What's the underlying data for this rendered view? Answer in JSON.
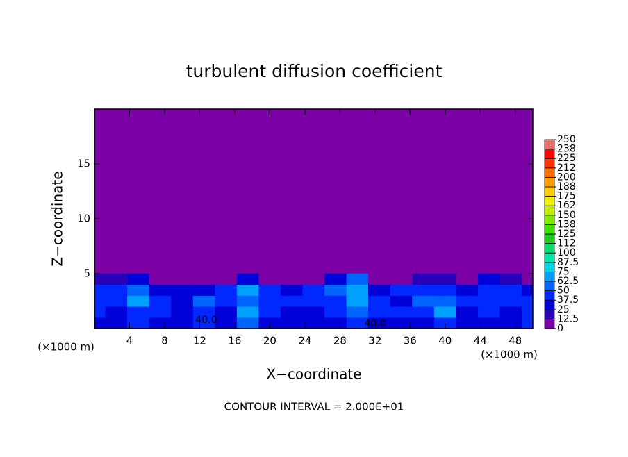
{
  "chart_data": {
    "type": "contour",
    "title": "turbulent diffusion coefficient",
    "x_label": "X−coordinate",
    "y_label": "Z−coordinate",
    "x_unit": "(×1000 m)",
    "footer": "CONTOUR INTERVAL = 2.000E+01",
    "xlim": [
      0,
      50
    ],
    "ylim": [
      0,
      20
    ],
    "xticks": [
      4,
      8,
      12,
      16,
      20,
      24,
      28,
      32,
      36,
      40,
      44,
      48
    ],
    "yticks": [
      5,
      10,
      15
    ],
    "x": [
      0,
      2.5,
      5,
      7.5,
      10,
      12.5,
      15,
      17.5,
      20,
      22.5,
      25,
      27.5,
      30,
      32.5,
      35,
      37.5,
      40,
      42.5,
      45,
      47.5,
      50
    ],
    "z": [
      0.5,
      1.5,
      2.5,
      3.5,
      4.5
    ],
    "values": [
      [
        35,
        30,
        40,
        25,
        30,
        40,
        30,
        50,
        30,
        25,
        30,
        35,
        40,
        35,
        30,
        35,
        45,
        30,
        35,
        25,
        40
      ],
      [
        40,
        35,
        45,
        40,
        30,
        45,
        35,
        65,
        40,
        30,
        35,
        45,
        60,
        40,
        45,
        40,
        65,
        35,
        40,
        30,
        45
      ],
      [
        45,
        40,
        65,
        40,
        35,
        50,
        40,
        60,
        45,
        40,
        45,
        40,
        65,
        45,
        35,
        50,
        60,
        40,
        45,
        45,
        40
      ],
      [
        40,
        45,
        50,
        35,
        30,
        30,
        45,
        70,
        40,
        35,
        40,
        55,
        70,
        30,
        40,
        45,
        40,
        30,
        45,
        40,
        35
      ],
      [
        20,
        15,
        35,
        5,
        0,
        0,
        10,
        30,
        5,
        5,
        10,
        30,
        60,
        5,
        0,
        20,
        15,
        5,
        30,
        20,
        10
      ]
    ],
    "annotations": [
      "40.0",
      "40.0"
    ],
    "colorbar": {
      "ticks": [
        0,
        12.5,
        25,
        37.5,
        50,
        62.5,
        75,
        87.5,
        100,
        {
          "value": 112.5,
          "label": "112"
        },
        125,
        {
          "value": 137.5,
          "label": "138"
        },
        150,
        {
          "value": 162.5,
          "label": "162"
        },
        175,
        {
          "value": 187.5,
          "label": "188"
        },
        200,
        {
          "value": 212.5,
          "label": "212"
        },
        225,
        {
          "value": 237.5,
          "label": "238"
        },
        250
      ],
      "colors": [
        "#7b00a6",
        "#2a00b8",
        "#0000d8",
        "#0028ff",
        "#0064ff",
        "#00a0ff",
        "#00d8e8",
        "#00e8b0",
        "#00e070",
        "#20d020",
        "#40e000",
        "#80f000",
        "#c0f000",
        "#f0f000",
        "#ffd000",
        "#ffa000",
        "#ff7000",
        "#ff3000",
        "#ff0000",
        "#f07070"
      ]
    }
  }
}
